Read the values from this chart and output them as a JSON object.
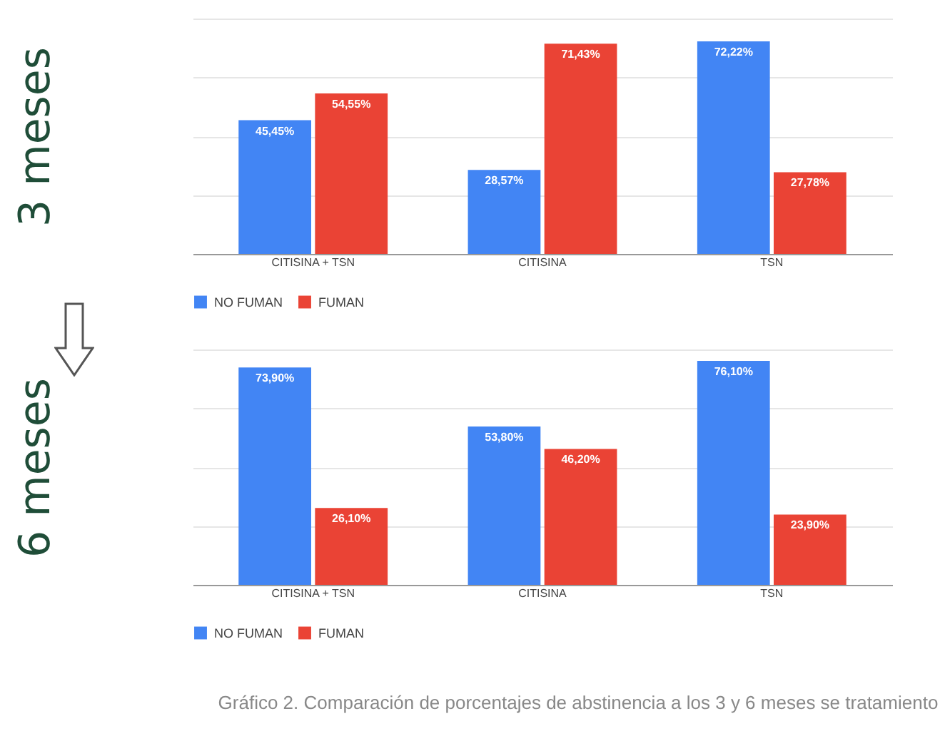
{
  "chart_data": [
    {
      "type": "bar",
      "ylabel": "3 meses",
      "categories": [
        "CITISINA + TSN",
        "CITISINA",
        "TSN"
      ],
      "series": [
        {
          "name": "NO FUMAN",
          "color": "#4285f4",
          "values": [
            45.45,
            28.57,
            72.22
          ],
          "value_labels": [
            "45,45%",
            "28,57%",
            "72,22%"
          ]
        },
        {
          "name": "FUMAN",
          "color": "#ea4335",
          "values": [
            54.55,
            71.43,
            27.78
          ],
          "value_labels": [
            "54,55%",
            "71,43%",
            "27,78%"
          ]
        }
      ],
      "ylim": [
        0,
        80
      ],
      "yticks": [
        {
          "value": 0,
          "label": null
        },
        {
          "value": 20,
          "label": null
        },
        {
          "value": 40,
          "label": null
        },
        {
          "value": 60,
          "label": null
        },
        {
          "value": 80,
          "label": null
        }
      ],
      "grid": "y",
      "legend": "bottom",
      "tick_labels": "x"
    },
    {
      "type": "bar",
      "ylabel": "6 meses",
      "categories": [
        "CITISINA + TSN",
        "CITISINA",
        "TSN"
      ],
      "series": [
        {
          "name": "NO FUMAN",
          "color": "#4285f4",
          "values": [
            73.9,
            53.8,
            76.1
          ],
          "value_labels": [
            "73,90%",
            "53,80%",
            "76,10%"
          ]
        },
        {
          "name": "FUMAN",
          "color": "#ea4335",
          "values": [
            26.1,
            46.2,
            23.9
          ],
          "value_labels": [
            "26,10%",
            "46,20%",
            "23,90%"
          ]
        }
      ],
      "ylim": [
        0,
        80
      ],
      "yticks": [
        {
          "value": 0,
          "label": null
        },
        {
          "value": 20,
          "label": null
        },
        {
          "value": 40,
          "label": null
        },
        {
          "value": 60,
          "label": null
        },
        {
          "value": 80,
          "label": null
        }
      ],
      "grid": "y",
      "legend": "bottom",
      "tick_labels": "x",
      "annotations": [
        "Gráfico 2. Comparación de porcentajes de abstinencia a los 3 y 6 meses se tratamiento"
      ]
    }
  ]
}
